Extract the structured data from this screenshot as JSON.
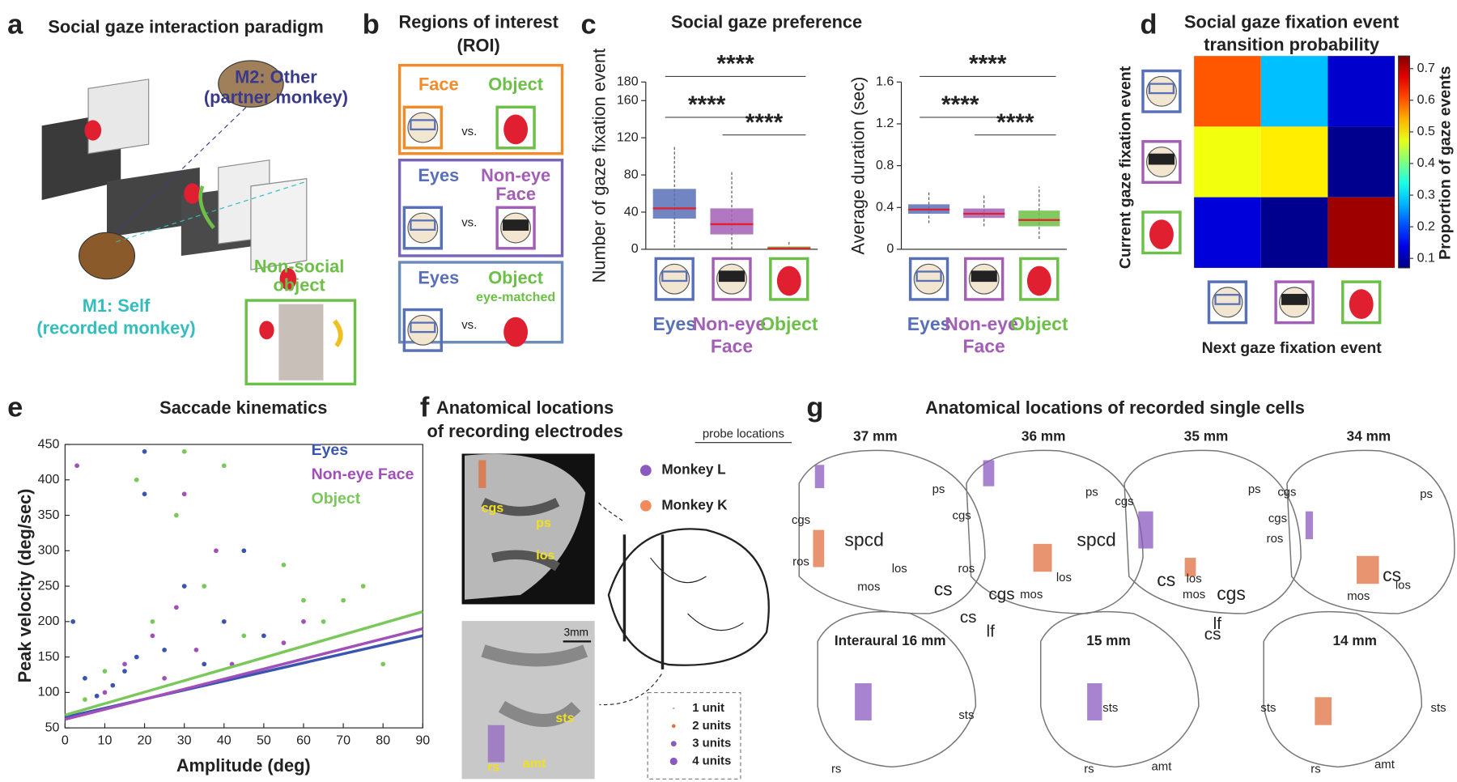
{
  "panel_a": {
    "letter": "a",
    "title": "Social gaze interaction paradigm",
    "m2": [
      "M2: Other",
      "(partner monkey)"
    ],
    "m1": [
      "M1: Self",
      "(recorded monkey)"
    ],
    "object": [
      "Non-social",
      "object"
    ]
  },
  "panel_b": {
    "letter": "b",
    "title": [
      "Regions of interest",
      "(ROI)"
    ],
    "vs": "vs.",
    "rows": [
      {
        "left": "Face",
        "right": [
          "Object"
        ]
      },
      {
        "left": "Eyes",
        "right": [
          "Non-eye",
          "Face"
        ]
      },
      {
        "left": "Eyes",
        "right": [
          "Object",
          "eye-matched"
        ]
      }
    ]
  },
  "panel_c": {
    "letter": "c",
    "title": "Social gaze preference"
  },
  "panel_d": {
    "letter": "d"
  },
  "panel_e": {
    "letter": "e"
  },
  "panel_f": {
    "letter": "f",
    "title": [
      "Anatomical locations",
      "of recording electrodes"
    ],
    "probe_title": "probe locations",
    "monkeys": [
      "Monkey L",
      "Monkey K"
    ],
    "mri_labels": [
      "cgs",
      "ps",
      "los",
      "sts",
      "rs",
      "amt"
    ],
    "scale": "3mm",
    "units": [
      "1 unit",
      "2 units",
      "3 units",
      "4 units"
    ]
  },
  "panel_g": {
    "letter": "g",
    "title": "Anatomical locations of recorded single cells",
    "slices": [
      "37 mm",
      "36 mm",
      "35 mm",
      "34 mm",
      "Interaural 16 mm",
      "15 mm",
      "14 mm"
    ],
    "labels": [
      "ps",
      "cgs",
      "spcd",
      "ros",
      "los",
      "mos",
      "cs",
      "cgs",
      "cs",
      "lf",
      "sts",
      "rs",
      "ps",
      "cgs",
      "spcd",
      "ros",
      "los",
      "mos",
      "sts",
      "rs",
      "amt",
      "ps",
      "cgs",
      "los",
      "cs",
      "mos",
      "cgs",
      "lf",
      "cs",
      "sts",
      "rs",
      "ps",
      "cgs",
      "cgs",
      "ros",
      "cs",
      "los",
      "mos",
      "sts",
      "amt"
    ]
  },
  "chart_data": [
    {
      "type": "box",
      "ylabel": "Number of gaze fixation event",
      "categories": [
        "Eyes",
        "Non-eye Face",
        "Object"
      ],
      "colors": [
        "#5870b8",
        "#a35fb5",
        "#6cbf47"
      ],
      "median_color": "#e0202c",
      "boxes": [
        {
          "low": 2,
          "q1": 33,
          "median": 44,
          "q3": 65,
          "high": 112
        },
        {
          "low": 0,
          "q1": 16,
          "median": 27,
          "q3": 44,
          "high": 84
        },
        {
          "low": 0,
          "q1": 0,
          "median": 1,
          "q3": 3,
          "high": 8
        }
      ],
      "significance": [
        "****",
        "****",
        "****"
      ],
      "ylim": [
        0,
        180
      ],
      "yticks": [
        0,
        40,
        80,
        120,
        160,
        180
      ]
    },
    {
      "type": "box",
      "ylabel": "Average duration (sec)",
      "categories": [
        "Eyes",
        "Non-eye Face",
        "Object"
      ],
      "colors": [
        "#5870b8",
        "#a35fb5",
        "#6cbf47"
      ],
      "median_color": "#e0202c",
      "boxes": [
        {
          "low": 0.25,
          "q1": 0.34,
          "median": 0.38,
          "q3": 0.43,
          "high": 0.55
        },
        {
          "low": 0.22,
          "q1": 0.3,
          "median": 0.34,
          "q3": 0.39,
          "high": 0.52
        },
        {
          "low": 0.1,
          "q1": 0.22,
          "median": 0.28,
          "q3": 0.37,
          "high": 0.6
        }
      ],
      "significance": [
        "****",
        "****",
        "****"
      ],
      "ylim": [
        0,
        1.6
      ],
      "yticks": [
        0,
        0.4,
        0.8,
        1.2,
        1.6
      ]
    },
    {
      "type": "heatmap",
      "title": [
        "Social gaze fixation event",
        "transition probability"
      ],
      "xlabel": "Next gaze fixation event",
      "ylabel": "Current  gaze fixation event",
      "colorbar_label": "Proportion of gaze events",
      "matrix": [
        [
          0.6,
          0.28,
          0.12
        ],
        [
          0.48,
          0.5,
          0.08
        ],
        [
          0.13,
          0.08,
          0.72
        ]
      ],
      "zlim": [
        0.07,
        0.74
      ],
      "zticks": [
        0.1,
        0.2,
        0.3,
        0.4,
        0.5,
        0.6,
        0.7
      ]
    },
    {
      "type": "scatter",
      "title": "Saccade kinematics",
      "xlabel": "Amplitude (deg)",
      "ylabel": "Peak velocity (deg/sec)",
      "xlim": [
        0,
        90
      ],
      "ylim": [
        50,
        450
      ],
      "xticks": [
        0,
        10,
        20,
        30,
        40,
        50,
        60,
        70,
        80,
        90
      ],
      "yticks": [
        50,
        100,
        150,
        200,
        250,
        300,
        350,
        400,
        450
      ],
      "series": [
        {
          "name": "Eyes",
          "color": "#3a55b0",
          "x": [
            2,
            5,
            8,
            12,
            15,
            18,
            20,
            25,
            30,
            35,
            40,
            45,
            50,
            20
          ],
          "values": [
            200,
            120,
            95,
            110,
            130,
            150,
            380,
            160,
            250,
            140,
            200,
            300,
            180,
            440
          ],
          "fit": {
            "x": [
              0,
              90
            ],
            "values": [
              65,
              180
            ]
          }
        },
        {
          "name": "Non-eye Face",
          "color": "#a050b8",
          "x": [
            3,
            10,
            15,
            22,
            28,
            33,
            38,
            42,
            55,
            60,
            30,
            25
          ],
          "values": [
            420,
            100,
            140,
            180,
            220,
            160,
            300,
            140,
            170,
            200,
            380,
            120
          ],
          "fit": {
            "x": [
              0,
              90
            ],
            "values": [
              62,
              190
            ]
          }
        },
        {
          "name": "Object",
          "color": "#7ac85a",
          "x": [
            5,
            10,
            18,
            22,
            28,
            35,
            40,
            45,
            55,
            60,
            65,
            70,
            75,
            80,
            30
          ],
          "values": [
            90,
            130,
            400,
            200,
            350,
            250,
            420,
            180,
            280,
            230,
            200,
            230,
            250,
            140,
            440
          ],
          "fit": {
            "x": [
              0,
              90
            ],
            "values": [
              68,
              214
            ]
          }
        }
      ]
    }
  ]
}
